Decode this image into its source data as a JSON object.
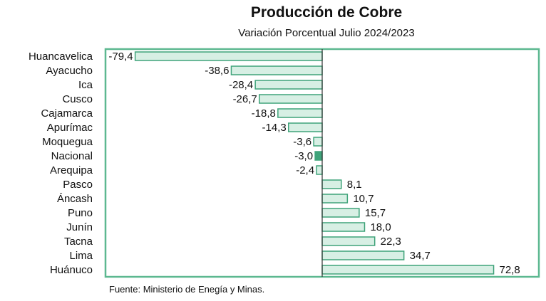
{
  "chart_data": {
    "type": "bar",
    "orientation": "horizontal",
    "title": "Producción de Cobre",
    "subtitle": "Variación Porcentual Julio 2024/2023",
    "source": "Fuente: Ministerio de Enegía y Minas.",
    "xlim": [
      -92,
      92
    ],
    "highlight_category": "Nacional",
    "colors": {
      "bar_fill": "#d7efe4",
      "bar_stroke": "#3fa37a",
      "highlight_fill": "#3fa37a",
      "frame": "#5cb890"
    },
    "categories": [
      "Huancavelica",
      "Ayacucho",
      "Ica",
      "Cusco",
      "Cajamarca",
      "Apurímac",
      "Moquegua",
      "Nacional",
      "Arequipa",
      "Pasco",
      "Áncash",
      "Puno",
      "Junín",
      "Tacna",
      "Lima",
      "Huánuco"
    ],
    "values": [
      -79.4,
      -38.6,
      -28.4,
      -26.7,
      -18.8,
      -14.3,
      -3.6,
      -3.0,
      -2.4,
      8.1,
      10.7,
      15.7,
      18.0,
      22.3,
      34.7,
      72.8
    ],
    "value_labels": [
      "-79,4",
      "-38,6",
      "-28,4",
      "-26,7",
      "-18,8",
      "-14,3",
      "-3,6",
      "-3,0",
      "-2,4",
      "8,1",
      "10,7",
      "15,7",
      "18,0",
      "22,3",
      "34,7",
      "72,8"
    ]
  }
}
